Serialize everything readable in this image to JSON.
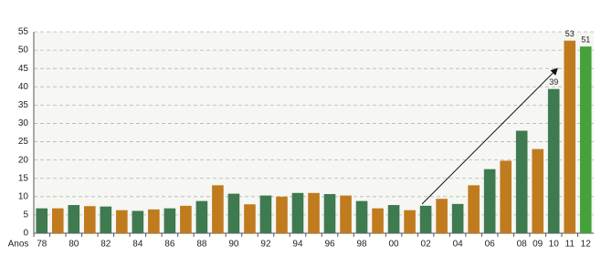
{
  "chart_data": {
    "type": "bar",
    "x_label": "Anos",
    "categories": [
      "78",
      null,
      "80",
      null,
      "82",
      null,
      "84",
      null,
      "86",
      null,
      "88",
      null,
      "90",
      null,
      "92",
      null,
      "94",
      null,
      "96",
      null,
      "98",
      null,
      "00",
      null,
      "02",
      null,
      "04",
      null,
      "06",
      null,
      "08",
      "09",
      "10",
      "11",
      "12"
    ],
    "values": [
      6.8,
      6.8,
      7.7,
      7.4,
      7.3,
      6.3,
      6.1,
      6.5,
      6.8,
      7.5,
      8.8,
      13.1,
      10.8,
      7.9,
      10.3,
      10.0,
      11.0,
      11.0,
      10.7,
      10.3,
      8.8,
      6.8,
      7.7,
      6.3,
      7.5,
      9.4,
      8.0,
      13.1,
      17.5,
      19.8,
      28.0,
      23.0,
      39.4,
      52.6,
      51
    ],
    "value_labels": [
      null,
      null,
      null,
      null,
      null,
      null,
      null,
      null,
      null,
      null,
      null,
      null,
      null,
      null,
      null,
      null,
      null,
      null,
      null,
      null,
      null,
      null,
      null,
      null,
      null,
      null,
      null,
      null,
      null,
      null,
      null,
      null,
      "39",
      "53",
      "51"
    ],
    "colors": [
      "#3f7a50",
      "#c07b1f",
      "#3f7a50",
      "#c07b1f",
      "#3f7a50",
      "#c07b1f",
      "#3f7a50",
      "#c07b1f",
      "#3f7a50",
      "#c07b1f",
      "#3f7a50",
      "#c07b1f",
      "#3f7a50",
      "#c07b1f",
      "#3f7a50",
      "#c07b1f",
      "#3f7a50",
      "#c07b1f",
      "#3f7a50",
      "#c07b1f",
      "#3f7a50",
      "#c07b1f",
      "#3f7a50",
      "#c07b1f",
      "#3f7a50",
      "#c07b1f",
      "#3f7a50",
      "#c07b1f",
      "#3f7a50",
      "#c07b1f",
      "#3f7a50",
      "#c07b1f",
      "#3f7a50",
      "#c07b1f",
      "#45a23a"
    ],
    "ylim": [
      0,
      55
    ],
    "yticks": [
      0,
      5,
      10,
      15,
      20,
      25,
      30,
      35,
      40,
      45,
      50,
      55
    ],
    "grid": true
  }
}
